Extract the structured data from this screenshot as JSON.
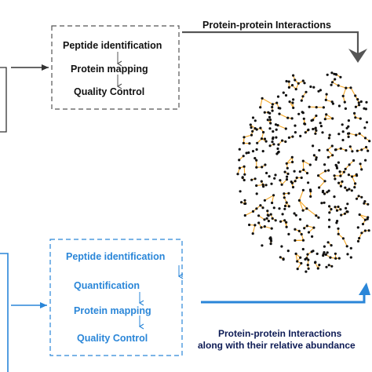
{
  "top_workflow": {
    "steps": [
      "Peptide identification",
      "Protein mapping",
      "Quality Control"
    ],
    "color": "#111111"
  },
  "bottom_workflow": {
    "steps": [
      "Peptide identification",
      "Quantification",
      "Protein mapping",
      "Quality Control"
    ],
    "color": "#2a86d8"
  },
  "network": {
    "top_label": "Protein-protein Interactions",
    "bottom_label_line1": "Protein-protein Interactions",
    "bottom_label_line2": "along with their relative abundance",
    "node_color": "#111111",
    "edge_color": "#f5a623"
  },
  "colors": {
    "dark_arrow": "#333333",
    "blue_accent": "#2a86d8",
    "bottom_label_color": "#0d1b55"
  }
}
